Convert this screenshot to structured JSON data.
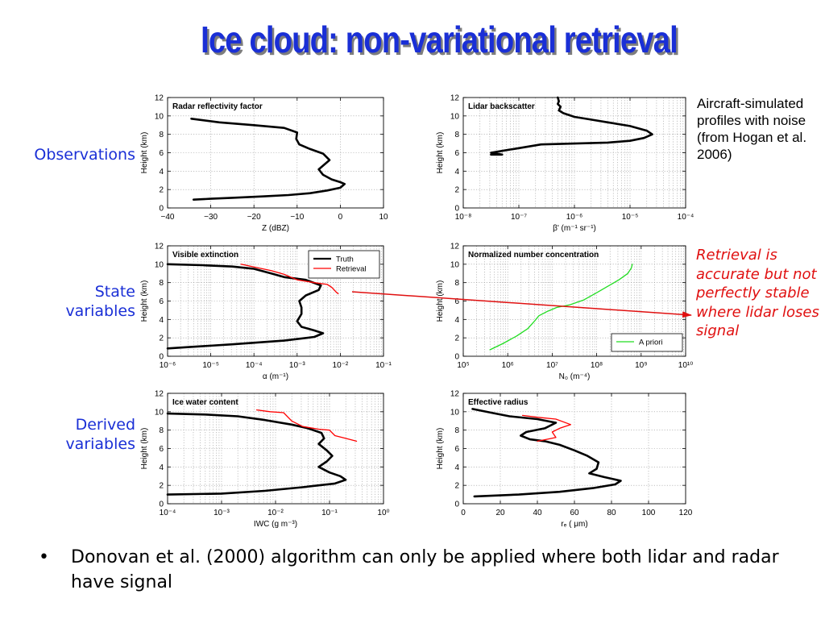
{
  "slide": {
    "title": "Ice cloud: non-variational retrieval",
    "row_labels": {
      "observations": "Observations",
      "state_variables": [
        "State",
        "variables"
      ],
      "derived_variables": [
        "Derived",
        "variables"
      ]
    },
    "aircraft_note": "Aircraft-simulated profiles with noise (from Hogan et al. 2006)",
    "retrieval_note": "Retrieval is accurate but not perfectly stable where lidar loses signal",
    "bullet": "Donovan et al. (2000) algorithm can only be applied where both lidar and radar have signal",
    "bullet_symbol": "•",
    "colors": {
      "title": "#1a2fd6",
      "labels": "#1a2fd6",
      "note_red": "#e01010",
      "truth": "#000000",
      "retrieval": "#ff0000",
      "apriori": "#22dd22"
    }
  },
  "chart_data": [
    {
      "id": "radar",
      "type": "line",
      "title": "Radar reflectivity factor",
      "xlabel": "Z (dBZ)",
      "ylabel": "Height (km)",
      "xscale": "linear",
      "xlim": [
        -40,
        10
      ],
      "ylim": [
        0,
        12
      ],
      "xticks": [
        -40,
        -30,
        -20,
        -10,
        0,
        10
      ],
      "xtick_labels": [
        "−40",
        "−30",
        "−20",
        "−10",
        "0",
        "10"
      ],
      "yticks": [
        0,
        2,
        4,
        6,
        8,
        10,
        12
      ],
      "ytick_labels": [
        "0",
        "2",
        "4",
        "6",
        "8",
        "10",
        "12"
      ],
      "grid": true,
      "series": [
        {
          "role": "truth",
          "points": [
            [
              -34.5,
              9.7
            ],
            [
              -28,
              9.3
            ],
            [
              -20,
              9.0
            ],
            [
              -13,
              8.7
            ],
            [
              -10,
              8.2
            ],
            [
              -10.2,
              7.5
            ],
            [
              -9.5,
              6.9
            ],
            [
              -7,
              6.4
            ],
            [
              -4,
              5.9
            ],
            [
              -2.5,
              5.2
            ],
            [
              -4,
              4.6
            ],
            [
              -5,
              4.2
            ],
            [
              -4,
              3.6
            ],
            [
              -2,
              3.1
            ],
            [
              0,
              2.8
            ],
            [
              1,
              2.6
            ],
            [
              0,
              2.2
            ],
            [
              -3,
              1.9
            ],
            [
              -7,
              1.6
            ],
            [
              -12,
              1.4
            ],
            [
              -18,
              1.25
            ],
            [
              -25,
              1.1
            ],
            [
              -30,
              1.0
            ],
            [
              -34,
              0.9
            ]
          ]
        }
      ]
    },
    {
      "id": "lidar",
      "type": "line",
      "title": "Lidar backscatter",
      "xlabel": "β' (m⁻¹ sr⁻¹)",
      "ylabel": "Height (km)",
      "xscale": "log",
      "xlim": [
        -8,
        -4
      ],
      "ylim": [
        0,
        12
      ],
      "xticks": [
        -8,
        -7,
        -6,
        -5,
        -4
      ],
      "xtick_labels": [
        "10⁻⁸",
        "10⁻⁷",
        "10⁻⁶",
        "10⁻⁵",
        "10⁻⁴"
      ],
      "yticks": [
        0,
        2,
        4,
        6,
        8,
        10,
        12
      ],
      "ytick_labels": [
        "0",
        "2",
        "4",
        "6",
        "8",
        "10",
        "12"
      ],
      "grid": true,
      "series": [
        {
          "role": "truth",
          "points": [
            [
              -6.3,
              12
            ],
            [
              -6.28,
              11.6
            ],
            [
              -6.3,
              11.3
            ],
            [
              -6.25,
              11.0
            ],
            [
              -6.28,
              10.6
            ],
            [
              -6.2,
              10.3
            ],
            [
              -6.0,
              9.9
            ],
            [
              -5.7,
              9.6
            ],
            [
              -5.4,
              9.3
            ],
            [
              -5.0,
              8.9
            ],
            [
              -4.7,
              8.4
            ],
            [
              -4.6,
              8.0
            ],
            [
              -4.75,
              7.6
            ],
            [
              -5.0,
              7.3
            ],
            [
              -5.4,
              7.1
            ],
            [
              -6.0,
              7.0
            ],
            [
              -6.6,
              6.9
            ],
            [
              -7.0,
              6.5
            ],
            [
              -7.3,
              6.2
            ],
            [
              -7.5,
              6.0
            ],
            [
              -7.3,
              5.8
            ],
            [
              -7.5,
              5.8
            ]
          ]
        }
      ]
    },
    {
      "id": "extinction",
      "type": "line",
      "title": "Visible extinction",
      "xlabel": "α (m⁻¹)",
      "ylabel": "Height (km)",
      "xscale": "log",
      "xlim": [
        -6,
        -1
      ],
      "ylim": [
        0,
        12
      ],
      "xticks": [
        -6,
        -5,
        -4,
        -3,
        -2,
        -1
      ],
      "xtick_labels": [
        "10⁻⁶",
        "10⁻⁵",
        "10⁻⁴",
        "10⁻³",
        "10⁻²",
        "10⁻¹"
      ],
      "yticks": [
        0,
        2,
        4,
        6,
        8,
        10,
        12
      ],
      "ytick_labels": [
        "0",
        "2",
        "4",
        "6",
        "8",
        "10",
        "12"
      ],
      "grid": true,
      "legend": {
        "position": "top-right",
        "entries": [
          "Truth",
          "Retrieval"
        ]
      },
      "series": [
        {
          "name": "Truth",
          "role": "truth",
          "points": [
            [
              -6,
              10.0
            ],
            [
              -5.2,
              9.9
            ],
            [
              -4.5,
              9.75
            ],
            [
              -4.0,
              9.5
            ],
            [
              -3.6,
              9.0
            ],
            [
              -3.3,
              8.6
            ],
            [
              -2.8,
              8.3
            ],
            [
              -2.45,
              7.7
            ],
            [
              -2.5,
              7.2
            ],
            [
              -2.8,
              6.6
            ],
            [
              -2.95,
              6.0
            ],
            [
              -2.9,
              5.3
            ],
            [
              -2.9,
              4.6
            ],
            [
              -3.0,
              3.8
            ],
            [
              -2.9,
              3.2
            ],
            [
              -2.6,
              2.8
            ],
            [
              -2.4,
              2.5
            ],
            [
              -2.6,
              2.1
            ],
            [
              -3.3,
              1.7
            ],
            [
              -4.5,
              1.3
            ],
            [
              -5.5,
              1.0
            ],
            [
              -6,
              0.85
            ]
          ]
        },
        {
          "name": "Retrieval",
          "role": "retrieval",
          "points": [
            [
              -4.3,
              10.0
            ],
            [
              -3.9,
              9.6
            ],
            [
              -3.6,
              9.3
            ],
            [
              -3.3,
              8.9
            ],
            [
              -3.0,
              8.3
            ],
            [
              -2.6,
              8.0
            ],
            [
              -2.3,
              7.8
            ],
            [
              -2.2,
              7.5
            ],
            [
              -2.1,
              7.0
            ],
            [
              -2.05,
              6.8
            ]
          ]
        }
      ]
    },
    {
      "id": "number-concentration",
      "type": "line",
      "title": "Normalized number concentration",
      "xlabel": "N₀ (m⁻⁴)",
      "ylabel": "Height (km)",
      "xscale": "log",
      "xlim": [
        5,
        10
      ],
      "ylim": [
        0,
        12
      ],
      "xticks": [
        5,
        6,
        7,
        8,
        9,
        10
      ],
      "xtick_labels": [
        "10⁵",
        "10⁶",
        "10⁷",
        "10⁸",
        "10⁹",
        "10¹⁰"
      ],
      "yticks": [
        0,
        2,
        4,
        6,
        8,
        10,
        12
      ],
      "ytick_labels": [
        "0",
        "2",
        "4",
        "6",
        "8",
        "10",
        "12"
      ],
      "grid": true,
      "legend": {
        "position": "bottom-right",
        "entries": [
          "A priori"
        ]
      },
      "series": [
        {
          "name": "A priori",
          "role": "apriori",
          "points": [
            [
              5.6,
              0.7
            ],
            [
              5.9,
              1.4
            ],
            [
              6.2,
              2.2
            ],
            [
              6.45,
              3.0
            ],
            [
              6.6,
              3.8
            ],
            [
              6.7,
              4.4
            ],
            [
              6.9,
              4.9
            ],
            [
              7.1,
              5.3
            ],
            [
              7.4,
              5.6
            ],
            [
              7.7,
              6.1
            ],
            [
              8.0,
              6.9
            ],
            [
              8.25,
              7.6
            ],
            [
              8.5,
              8.3
            ],
            [
              8.7,
              9.0
            ],
            [
              8.78,
              9.6
            ],
            [
              8.8,
              10.0
            ]
          ]
        }
      ]
    },
    {
      "id": "iwc",
      "type": "line",
      "title": "Ice water content",
      "xlabel": "IWC (g m⁻³)",
      "ylabel": "Height (km)",
      "xscale": "log",
      "xlim": [
        -4,
        0
      ],
      "ylim": [
        0,
        12
      ],
      "xticks": [
        -4,
        -3,
        -2,
        -1,
        0
      ],
      "xtick_labels": [
        "10⁻⁴",
        "10⁻³",
        "10⁻²",
        "10⁻¹",
        "10⁰"
      ],
      "yticks": [
        0,
        2,
        4,
        6,
        8,
        10,
        12
      ],
      "ytick_labels": [
        "0",
        "2",
        "4",
        "6",
        "8",
        "10",
        "12"
      ],
      "grid": true,
      "series": [
        {
          "name": "Truth",
          "role": "truth",
          "points": [
            [
              -4,
              9.8
            ],
            [
              -3.3,
              9.7
            ],
            [
              -2.7,
              9.5
            ],
            [
              -2.2,
              9.1
            ],
            [
              -1.7,
              8.6
            ],
            [
              -1.4,
              8.2
            ],
            [
              -1.15,
              7.7
            ],
            [
              -1.1,
              7.1
            ],
            [
              -1.2,
              6.5
            ],
            [
              -1.05,
              5.8
            ],
            [
              -0.95,
              5.2
            ],
            [
              -1.05,
              4.6
            ],
            [
              -1.2,
              4.0
            ],
            [
              -1.0,
              3.4
            ],
            [
              -0.8,
              3.0
            ],
            [
              -0.7,
              2.6
            ],
            [
              -0.9,
              2.2
            ],
            [
              -1.5,
              1.8
            ],
            [
              -2.2,
              1.4
            ],
            [
              -3.0,
              1.1
            ],
            [
              -4,
              1.0
            ]
          ]
        },
        {
          "name": "Retrieval",
          "role": "retrieval",
          "points": [
            [
              -2.35,
              10.2
            ],
            [
              -2.1,
              10.0
            ],
            [
              -1.85,
              9.9
            ],
            [
              -1.7,
              9.0
            ],
            [
              -1.5,
              8.4
            ],
            [
              -1.2,
              8.1
            ],
            [
              -1.0,
              8.0
            ],
            [
              -0.9,
              7.4
            ],
            [
              -0.7,
              7.1
            ],
            [
              -0.5,
              6.8
            ]
          ]
        }
      ]
    },
    {
      "id": "effective-radius",
      "type": "line",
      "title": "Effective radius",
      "xlabel": "rₑ ( μm)",
      "ylabel": "Height (km)",
      "xscale": "linear",
      "xlim": [
        0,
        120
      ],
      "ylim": [
        0,
        12
      ],
      "xticks": [
        0,
        20,
        40,
        60,
        80,
        100,
        120
      ],
      "xtick_labels": [
        "0",
        "20",
        "40",
        "60",
        "80",
        "100",
        "120"
      ],
      "yticks": [
        0,
        2,
        4,
        6,
        8,
        10,
        12
      ],
      "ytick_labels": [
        "0",
        "2",
        "4",
        "6",
        "8",
        "10",
        "12"
      ],
      "grid": true,
      "series": [
        {
          "name": "Truth",
          "role": "truth",
          "points": [
            [
              5,
              10.3
            ],
            [
              15,
              9.9
            ],
            [
              25,
              9.5
            ],
            [
              40,
              9.2
            ],
            [
              50,
              8.8
            ],
            [
              44,
              8.2
            ],
            [
              34,
              7.8
            ],
            [
              31,
              7.4
            ],
            [
              36,
              7.0
            ],
            [
              44,
              6.8
            ],
            [
              52,
              6.4
            ],
            [
              60,
              5.8
            ],
            [
              67,
              5.2
            ],
            [
              73,
              4.5
            ],
            [
              72,
              3.8
            ],
            [
              68,
              3.3
            ],
            [
              76,
              2.9
            ],
            [
              85,
              2.5
            ],
            [
              82,
              2.1
            ],
            [
              70,
              1.7
            ],
            [
              52,
              1.3
            ],
            [
              30,
              1.0
            ],
            [
              6,
              0.8
            ]
          ]
        },
        {
          "name": "Retrieval",
          "role": "retrieval",
          "points": [
            [
              32,
              9.6
            ],
            [
              40,
              9.4
            ],
            [
              50,
              9.2
            ],
            [
              58,
              8.6
            ],
            [
              52,
              8.2
            ],
            [
              48,
              7.8
            ],
            [
              50,
              7.2
            ],
            [
              45,
              7.0
            ],
            [
              40,
              6.8
            ]
          ]
        }
      ]
    }
  ]
}
